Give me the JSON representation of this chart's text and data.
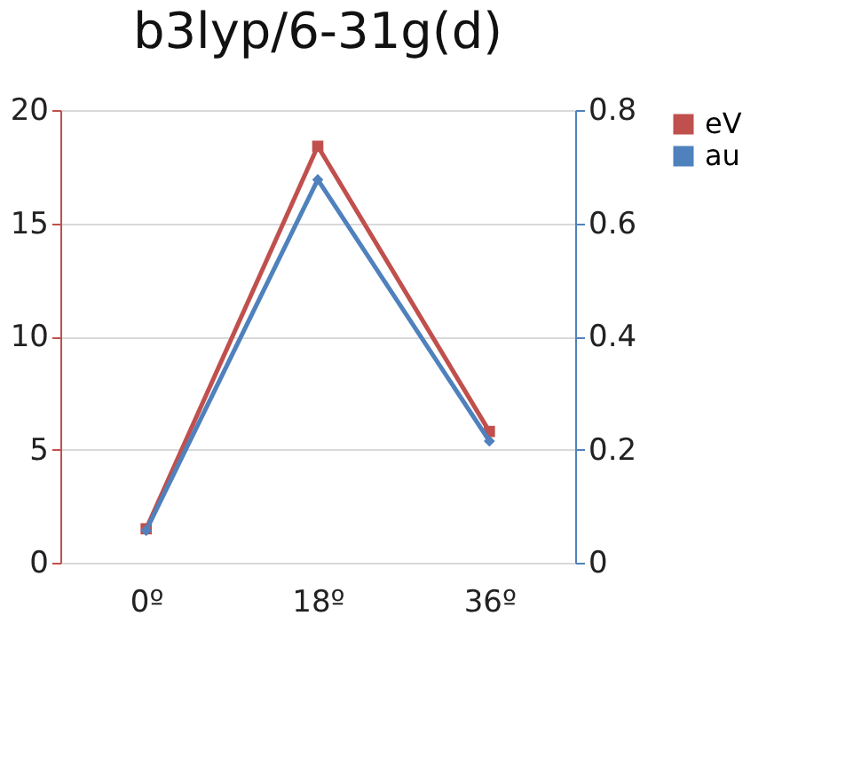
{
  "chart_data": {
    "type": "line",
    "title": "b3lyp/6-31g(d)",
    "categories": [
      "0º",
      "18º",
      "36º"
    ],
    "series": [
      {
        "name": "eV",
        "color": "#c0504d",
        "values": [
          1.5,
          18.4,
          5.8
        ],
        "marker": "square"
      },
      {
        "name": "au",
        "color": "#4f81bd",
        "values": [
          0.057,
          0.677,
          0.215
        ],
        "axis": "y2",
        "marker": "diamond"
      }
    ],
    "ylim": [
      0,
      20
    ],
    "yticks": [
      0,
      5,
      10,
      15,
      20
    ],
    "y2lim": [
      0,
      0.8
    ],
    "y2ticks": [
      0,
      0.2,
      0.4,
      0.6,
      0.8
    ],
    "grid": "y",
    "legend": "right",
    "line_style": "solid"
  }
}
